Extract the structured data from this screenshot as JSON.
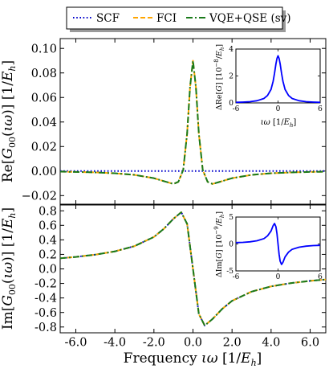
{
  "chart_data": [
    {
      "type": "line",
      "panel": "top",
      "ylabel": "Re[G00(ιω)] [1/Eh]",
      "xlim": [
        -6.8,
        6.8
      ],
      "ylim": [
        -0.027,
        0.108
      ],
      "yticks": [
        -0.02,
        0.0,
        0.02,
        0.04,
        0.06,
        0.08,
        0.1
      ],
      "ytick_labels": [
        "−0.02",
        "0.00",
        "0.02",
        "0.04",
        "0.06",
        "0.08",
        "0.10"
      ],
      "xticks": [
        -6,
        -4,
        -2,
        0,
        2,
        4,
        6
      ],
      "grid": false,
      "legend": {
        "placement": "top-center-outside",
        "entries": [
          {
            "label": "SCF",
            "color": "#0000cc",
            "style": "dotted"
          },
          {
            "label": "FCI",
            "color": "#ffa500",
            "style": "dashed"
          },
          {
            "label": "VQE+QSE (sv)",
            "color": "#1a7a1a",
            "style": "dashdot"
          }
        ]
      },
      "series": [
        {
          "name": "SCF",
          "color": "#0000cc",
          "x": [
            -6.8,
            -4,
            -2,
            0,
            2,
            4,
            6.8
          ],
          "values": [
            0.0,
            0.0,
            0.0,
            0.0,
            0.0,
            0.0,
            0.0
          ]
        },
        {
          "name": "FCI",
          "color": "#ffa500",
          "x": [
            -6.8,
            -6,
            -5,
            -4,
            -3,
            -2,
            -1.5,
            -1.0,
            -0.75,
            -0.5,
            -0.3,
            -0.15,
            0.0,
            0.15,
            0.3,
            0.5,
            0.75,
            1.0,
            1.5,
            2,
            3,
            4,
            5,
            6,
            6.8
          ],
          "values": [
            -0.0005,
            -0.0007,
            -0.0011,
            -0.0018,
            -0.0031,
            -0.0058,
            -0.0082,
            -0.0105,
            -0.0088,
            0.0009,
            0.0306,
            0.0684,
            0.09,
            0.0684,
            0.0306,
            0.0009,
            -0.0088,
            -0.0105,
            -0.0082,
            -0.0058,
            -0.0031,
            -0.0018,
            -0.0011,
            -0.0007,
            -0.0005
          ]
        },
        {
          "name": "VQE+QSE (sv)",
          "color": "#1a7a1a",
          "x": [
            -6.8,
            -6,
            -5,
            -4,
            -3,
            -2,
            -1.5,
            -1.0,
            -0.75,
            -0.5,
            -0.3,
            -0.15,
            0.0,
            0.15,
            0.3,
            0.5,
            0.75,
            1.0,
            1.5,
            2,
            3,
            4,
            5,
            6,
            6.8
          ],
          "values": [
            -0.0005,
            -0.0007,
            -0.0011,
            -0.0018,
            -0.0031,
            -0.0058,
            -0.0082,
            -0.0105,
            -0.0088,
            0.0009,
            0.0306,
            0.0684,
            0.09,
            0.0684,
            0.0306,
            0.0009,
            -0.0088,
            -0.0105,
            -0.0082,
            -0.0058,
            -0.0031,
            -0.0018,
            -0.0011,
            -0.0007,
            -0.0005
          ]
        }
      ],
      "inset": {
        "ylabel": "ΔRe[G] [10⁻⁸/Eh]",
        "xlabel": "ιω [1/Eh]",
        "xlim": [
          -6,
          6
        ],
        "ylim": [
          0,
          4
        ],
        "xticks": [
          -6,
          0,
          6
        ],
        "yticks": [
          0,
          2,
          4
        ],
        "series": [
          {
            "name": "ΔRe",
            "color": "#0000ff",
            "x": [
              -6,
              -5,
              -4,
              -3,
              -2,
              -1.5,
              -1,
              -0.7,
              -0.5,
              -0.3,
              -0.15,
              0,
              0.15,
              0.3,
              0.5,
              0.7,
              1,
              1.5,
              2,
              3,
              4,
              5,
              6
            ],
            "values": [
              0.04,
              0.06,
              0.09,
              0.16,
              0.33,
              0.55,
              1.0,
              1.6,
              2.2,
              2.9,
              3.3,
              3.5,
              3.3,
              2.9,
              2.2,
              1.6,
              1.0,
              0.55,
              0.33,
              0.16,
              0.09,
              0.06,
              0.04
            ]
          }
        ]
      }
    },
    {
      "type": "line",
      "panel": "bottom",
      "ylabel": "Im[G00(ιω)] [1/Eh]",
      "xlabel": "Frequency ιω [1/Eh]",
      "xlim": [
        -6.8,
        6.8
      ],
      "ylim": [
        -0.88,
        0.88
      ],
      "yticks": [
        -0.8,
        -0.6,
        -0.4,
        -0.2,
        0.0,
        0.2,
        0.4,
        0.6,
        0.8
      ],
      "ytick_labels": [
        "-0.8",
        "-0.6",
        "-0.4",
        "-0.2",
        "0.0",
        "0.2",
        "0.4",
        "0.6",
        "0.8"
      ],
      "xticks": [
        -6,
        -4,
        -2,
        0,
        2,
        4,
        6
      ],
      "xtick_labels": [
        "-6.0",
        "-4.0",
        "-2.0",
        "0.0",
        "2.0",
        "4.0",
        "6.0"
      ],
      "grid": false,
      "series": [
        {
          "name": "SCF",
          "color": "#0000cc",
          "x": [
            -6.8,
            -6,
            -5,
            -4,
            -3,
            -2,
            -1.5,
            -1.0,
            -0.6,
            -0.3,
            0.0,
            0.3,
            0.6,
            1.0,
            1.5,
            2,
            3,
            4,
            5,
            6,
            6.8
          ],
          "values": [
            0.146,
            0.165,
            0.196,
            0.241,
            0.313,
            0.44,
            0.55,
            0.69,
            0.78,
            0.62,
            0.0,
            -0.62,
            -0.78,
            -0.69,
            -0.55,
            -0.44,
            -0.313,
            -0.241,
            -0.196,
            -0.165,
            -0.146
          ]
        },
        {
          "name": "FCI",
          "color": "#ffa500",
          "x": [
            -6.8,
            -6,
            -5,
            -4,
            -3,
            -2,
            -1.5,
            -1.0,
            -0.6,
            -0.3,
            0.0,
            0.3,
            0.6,
            1.0,
            1.5,
            2,
            3,
            4,
            5,
            6,
            6.8
          ],
          "values": [
            0.146,
            0.165,
            0.196,
            0.241,
            0.313,
            0.44,
            0.55,
            0.69,
            0.78,
            0.62,
            0.0,
            -0.62,
            -0.78,
            -0.69,
            -0.55,
            -0.44,
            -0.313,
            -0.241,
            -0.196,
            -0.165,
            -0.146
          ]
        },
        {
          "name": "VQE+QSE (sv)",
          "color": "#1a7a1a",
          "x": [
            -6.8,
            -6,
            -5,
            -4,
            -3,
            -2,
            -1.5,
            -1.0,
            -0.6,
            -0.3,
            0.0,
            0.3,
            0.6,
            1.0,
            1.5,
            2,
            3,
            4,
            5,
            6,
            6.8
          ],
          "values": [
            0.146,
            0.165,
            0.196,
            0.241,
            0.313,
            0.44,
            0.55,
            0.69,
            0.78,
            0.62,
            0.0,
            -0.62,
            -0.78,
            -0.69,
            -0.55,
            -0.44,
            -0.313,
            -0.241,
            -0.196,
            -0.165,
            -0.146
          ]
        }
      ],
      "inset": {
        "ylabel": "ΔIm[G] [10⁻⁹/Eh]",
        "xlim": [
          -6,
          6
        ],
        "ylim": [
          -5,
          5
        ],
        "xticks": [
          -6,
          0,
          6
        ],
        "yticks": [
          -5,
          0,
          5
        ],
        "series": [
          {
            "name": "ΔIm",
            "color": "#0000ff",
            "x": [
              -6,
              -5,
              -4,
              -3,
              -2,
              -1.5,
              -1,
              -0.7,
              -0.5,
              -0.3,
              -0.15,
              0,
              0.15,
              0.3,
              0.5,
              0.7,
              1,
              1.5,
              2,
              3,
              4,
              5,
              6
            ],
            "values": [
              0.25,
              0.3,
              0.4,
              0.6,
              1.0,
              1.5,
              2.4,
              3.4,
              3.8,
              3.2,
              1.9,
              0.0,
              -1.9,
              -3.2,
              -3.8,
              -3.4,
              -2.4,
              -1.5,
              -1.0,
              -0.6,
              -0.4,
              -0.3,
              -0.25
            ]
          }
        ]
      }
    }
  ]
}
